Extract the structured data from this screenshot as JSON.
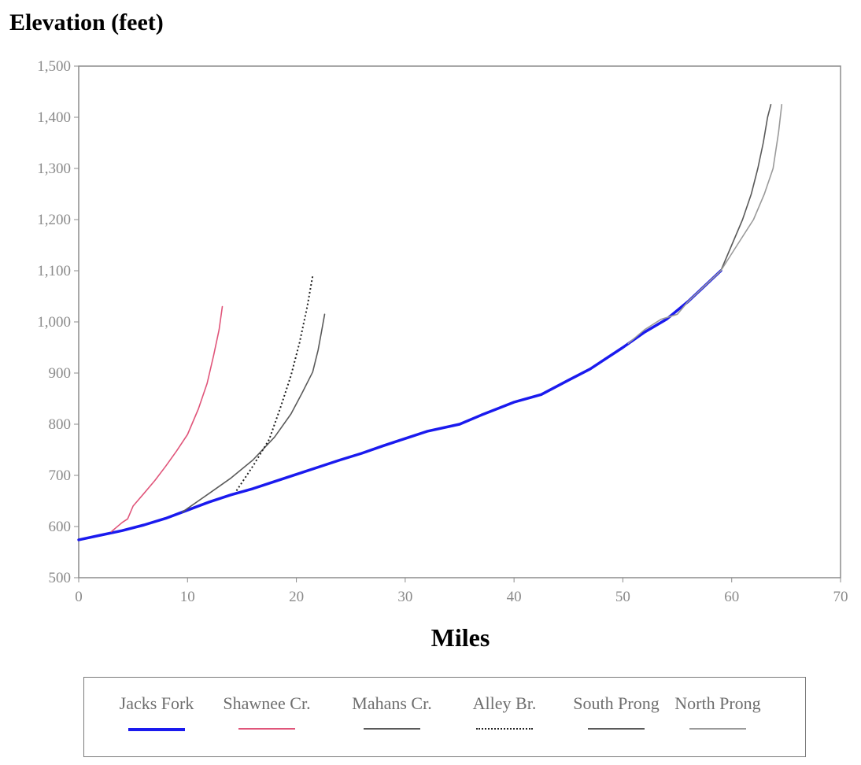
{
  "chart_data": {
    "type": "line",
    "title": "",
    "ylabel": "Elevation (feet)",
    "xlabel": "Miles",
    "xlim": [
      0,
      70
    ],
    "ylim": [
      500,
      1500
    ],
    "xticks": [
      "0",
      "10",
      "20",
      "30",
      "40",
      "50",
      "60",
      "70"
    ],
    "yticks": [
      "500",
      "600",
      "700",
      "800",
      "900",
      "1,000",
      "1,100",
      "1,200",
      "1,300",
      "1,400",
      "1,500"
    ],
    "grid": false,
    "legend_position": "bottom",
    "series": [
      {
        "name": "Jacks Fork",
        "color": "#1a1aee",
        "style": "solid",
        "x": [
          0,
          2,
          4,
          6,
          8,
          10,
          12,
          14,
          16,
          18,
          20,
          22,
          24,
          26,
          28,
          30,
          32,
          35,
          37,
          40,
          42.5,
          45,
          47,
          50,
          52,
          54,
          56,
          58,
          59
        ],
        "y": [
          574,
          583,
          592,
          603,
          616,
          632,
          648,
          662,
          674,
          688,
          702,
          716,
          730,
          743,
          758,
          772,
          786,
          800,
          818,
          843,
          858,
          886,
          908,
          950,
          980,
          1005,
          1040,
          1080,
          1100
        ]
      },
      {
        "name": "Shawnee Cr.",
        "color": "#e0557a",
        "style": "solid",
        "x": [
          3,
          4,
          4.5,
          5,
          6,
          7,
          8,
          9,
          10,
          11,
          11.8,
          12.4,
          12.9,
          13.2
        ],
        "y": [
          590,
          608,
          615,
          640,
          665,
          690,
          718,
          748,
          780,
          830,
          880,
          935,
          985,
          1030
        ]
      },
      {
        "name": "Mahans Cr.",
        "color": "#5a5a5a",
        "style": "solid",
        "x": [
          9.5,
          12,
          14,
          16,
          18,
          19.5,
          20.5,
          21.5,
          22,
          22.3,
          22.6
        ],
        "y": [
          628,
          665,
          695,
          730,
          775,
          820,
          860,
          902,
          945,
          980,
          1015
        ]
      },
      {
        "name": "Alley Br.",
        "color": "#222222",
        "style": "dotted",
        "x": [
          14.5,
          16,
          17.5,
          18.5,
          19.5,
          20.3,
          21,
          21.5
        ],
        "y": [
          670,
          718,
          770,
          830,
          895,
          960,
          1030,
          1090
        ]
      },
      {
        "name": "South Prong",
        "color": "#5a5a5a",
        "style": "solid",
        "x": [
          59,
          60,
          61,
          61.8,
          62.4,
          62.9,
          63.3,
          63.6
        ],
        "y": [
          1100,
          1150,
          1200,
          1250,
          1300,
          1350,
          1400,
          1425
        ]
      },
      {
        "name": "North Prong",
        "color": "#9a9a9a",
        "style": "solid",
        "x": [
          50.5,
          52,
          53.5,
          55,
          56,
          57.5,
          59,
          60.5,
          62,
          63,
          63.8,
          64.3,
          64.6
        ],
        "y": [
          958,
          985,
          1005,
          1015,
          1040,
          1070,
          1100,
          1150,
          1200,
          1250,
          1300,
          1370,
          1425
        ]
      }
    ]
  }
}
